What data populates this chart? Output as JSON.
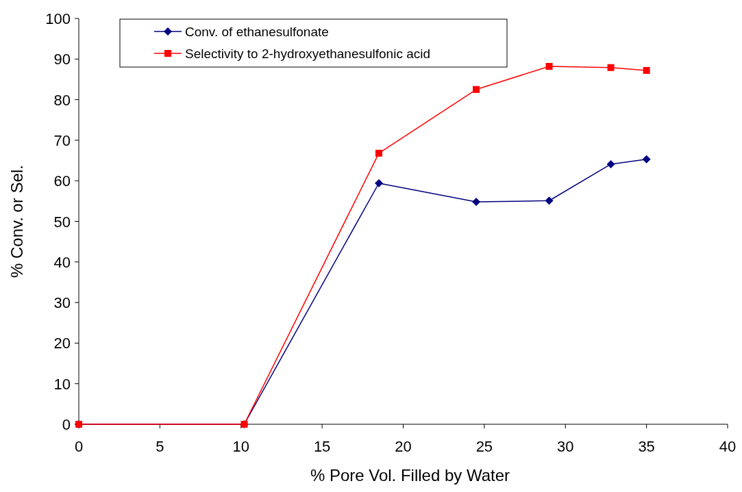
{
  "chart_data": {
    "type": "line",
    "xlabel": "% Pore Vol. Filled by Water",
    "ylabel": "% Conv. or Sel.",
    "x": [
      0,
      10.2,
      18.5,
      24.5,
      29,
      32.8,
      35
    ],
    "series": [
      {
        "name": "Conv. of ethanesulfonate",
        "color": "#000080",
        "marker": "diamond",
        "values": [
          0,
          0,
          59.4,
          54.8,
          55.1,
          64.1,
          65.3
        ]
      },
      {
        "name": "Selectivity to 2-hydroxyethanesulfonic acid",
        "color": "#ff0000",
        "marker": "square",
        "values": [
          0,
          0,
          66.8,
          82.5,
          88.2,
          87.9,
          87.2
        ]
      }
    ],
    "xlim": [
      0,
      40
    ],
    "xticks": [
      0,
      5,
      10,
      15,
      20,
      25,
      30,
      35,
      40
    ],
    "ylim": [
      0,
      100
    ],
    "yticks": [
      0,
      10,
      20,
      30,
      40,
      50,
      60,
      70,
      80,
      90,
      100
    ],
    "grid": false,
    "legend": "top left"
  }
}
